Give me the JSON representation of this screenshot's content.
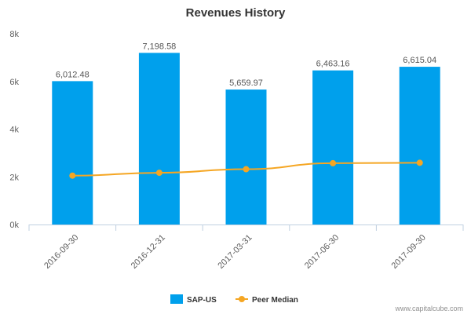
{
  "chart_data": {
    "type": "bar",
    "title": "Revenues History",
    "categories": [
      "2016-09-30",
      "2016-12-31",
      "2017-03-31",
      "2017-06-30",
      "2017-09-30"
    ],
    "series": [
      {
        "name": "SAP-US",
        "kind": "bar",
        "color": "#00a0ec",
        "values": [
          6012.48,
          7198.58,
          5659.97,
          6463.16,
          6615.04
        ],
        "labels": [
          "6,012.48",
          "7,198.58",
          "5,659.97",
          "6,463.16",
          "6,615.04"
        ]
      },
      {
        "name": "Peer Median",
        "kind": "line",
        "color": "#f5a623",
        "values": [
          2050,
          2170,
          2320,
          2570,
          2590
        ]
      }
    ],
    "ylim": [
      0,
      8000
    ],
    "yticks": [
      0,
      2000,
      4000,
      6000,
      8000
    ],
    "ytick_labels": [
      "0k",
      "2k",
      "4k",
      "6k",
      "8k"
    ],
    "xlabel": "",
    "ylabel": "",
    "grid": false,
    "legend": "bottom-center"
  },
  "credit": "www.capitalcube.com"
}
